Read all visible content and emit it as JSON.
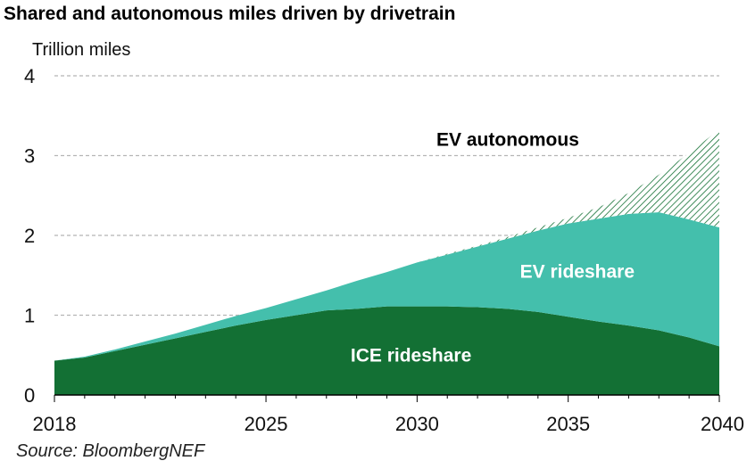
{
  "chart_data": {
    "type": "area",
    "stacked": true,
    "title": "Shared and autonomous miles driven by drivetrain",
    "ylabel": "Trillion miles",
    "ylim": [
      0,
      4
    ],
    "xlim": [
      2018,
      2040
    ],
    "yticks": [
      0,
      1,
      2,
      3,
      4
    ],
    "xticks": [
      2018,
      2025,
      2030,
      2035,
      2040
    ],
    "grid": true,
    "x": [
      2018,
      2019,
      2020,
      2021,
      2022,
      2023,
      2024,
      2025,
      2026,
      2027,
      2028,
      2029,
      2030,
      2031,
      2032,
      2033,
      2034,
      2035,
      2036,
      2037,
      2038,
      2039,
      2040
    ],
    "series": [
      {
        "name": "ICE rideshare",
        "color": "#137034",
        "values": [
          0.43,
          0.47,
          0.55,
          0.63,
          0.71,
          0.79,
          0.87,
          0.94,
          1.0,
          1.06,
          1.08,
          1.11,
          1.11,
          1.11,
          1.1,
          1.08,
          1.04,
          0.98,
          0.92,
          0.87,
          0.81,
          0.72,
          0.61
        ]
      },
      {
        "name": "EV rideshare",
        "color": "#44bfac",
        "values": [
          0.0,
          0.01,
          0.02,
          0.04,
          0.06,
          0.09,
          0.12,
          0.15,
          0.2,
          0.25,
          0.35,
          0.43,
          0.55,
          0.65,
          0.76,
          0.88,
          1.02,
          1.17,
          1.29,
          1.4,
          1.48,
          1.48,
          1.49
        ]
      },
      {
        "name": "EV autonomous",
        "color": "#44bfac",
        "pattern": "hatched",
        "values": [
          0.0,
          0.0,
          0.0,
          0.0,
          0.0,
          0.0,
          0.0,
          0.0,
          0.0,
          0.0,
          0.0,
          0.0,
          0.0,
          0.01,
          0.01,
          0.02,
          0.04,
          0.07,
          0.14,
          0.26,
          0.47,
          0.83,
          1.23
        ]
      }
    ],
    "annotations": [
      {
        "text": "EV autonomous",
        "x": 2033.0,
        "y": 3.2,
        "color": "#000000"
      },
      {
        "text": "EV rideshare",
        "x": 2035.3,
        "y": 1.55,
        "color": "#ffffff"
      },
      {
        "text": "ICE rideshare",
        "x": 2029.8,
        "y": 0.5,
        "color": "#ffffff"
      }
    ],
    "source": "Source: BloombergNEF"
  }
}
